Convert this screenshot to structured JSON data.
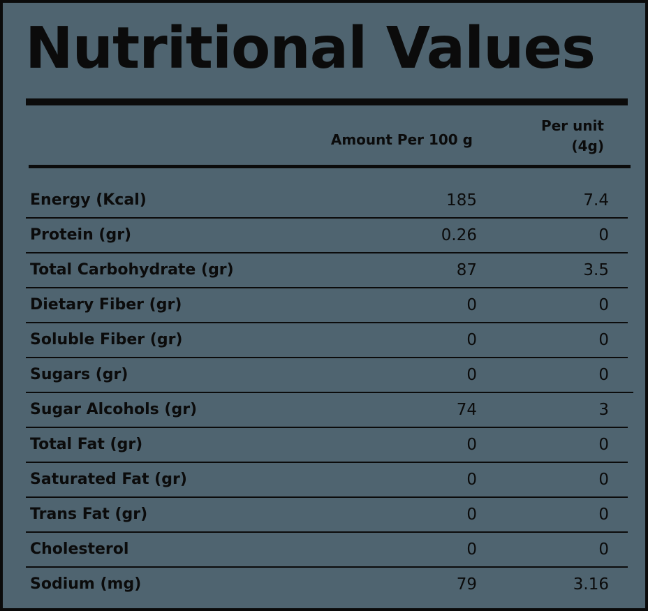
{
  "title": "Nutritional Values",
  "headers": {
    "amount_per_100g": "Amount Per 100 g",
    "per_unit_line1": "Per unit",
    "per_unit_line2": "(4g)"
  },
  "rows": [
    {
      "label": "Energy (Kcal)",
      "per_100g": "185",
      "per_unit": "7.4"
    },
    {
      "label": "Protein (gr)",
      "per_100g": "0.26",
      "per_unit": "0"
    },
    {
      "label": "Total Carbohydrate (gr)",
      "per_100g": "87",
      "per_unit": "3.5"
    },
    {
      "label": "Dietary Fiber (gr)",
      "per_100g": "0",
      "per_unit": "0"
    },
    {
      "label": "Soluble Fiber (gr)",
      "per_100g": "0",
      "per_unit": "0"
    },
    {
      "label": "Sugars (gr)",
      "per_100g": "0",
      "per_unit": "0"
    },
    {
      "label": "Sugar Alcohols (gr)",
      "per_100g": "74",
      "per_unit": "3"
    },
    {
      "label": "Total Fat (gr)",
      "per_100g": "0",
      "per_unit": "0"
    },
    {
      "label": "Saturated Fat (gr)",
      "per_100g": "0",
      "per_unit": "0"
    },
    {
      "label": "Trans Fat (gr)",
      "per_100g": "0",
      "per_unit": "0"
    },
    {
      "label": "Cholesterol",
      "per_100g": "0",
      "per_unit": "0"
    },
    {
      "label": "Sodium (mg)",
      "per_100g": "79",
      "per_unit": "3.16"
    }
  ],
  "colors": {
    "background": "#4f6470",
    "ink": "#0b0b0b"
  }
}
